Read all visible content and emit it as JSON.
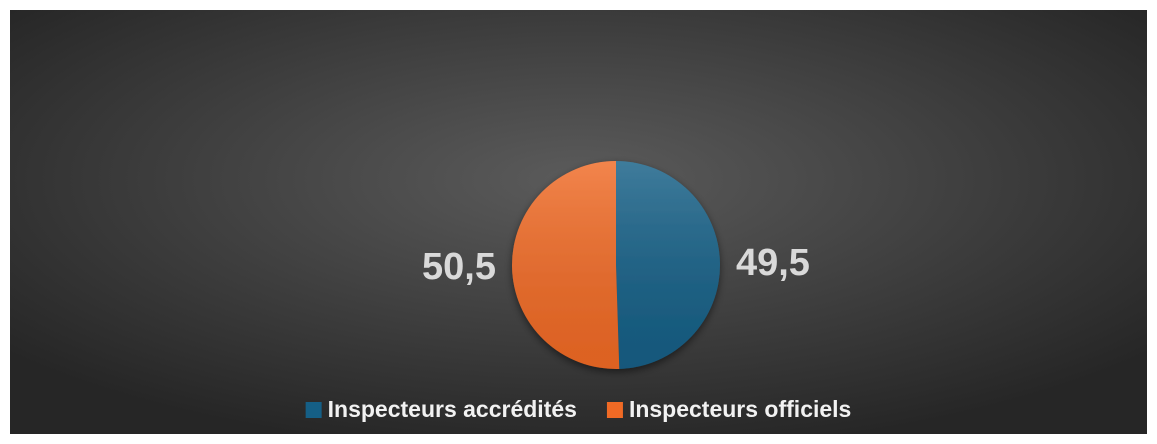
{
  "chart_data": {
    "type": "pie",
    "categories": [
      "Inspecteurs accrédités",
      "Inspecteurs officiels"
    ],
    "values": [
      49.5,
      50.5
    ],
    "value_labels": [
      "49,5",
      "50,5"
    ],
    "colors": [
      "#155f86",
      "#f06a25"
    ],
    "legend": "bottom"
  }
}
